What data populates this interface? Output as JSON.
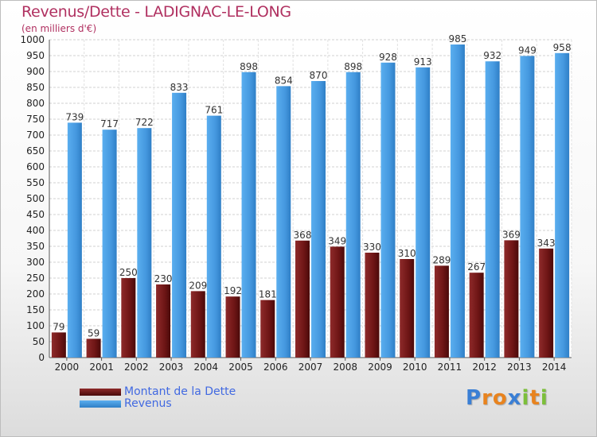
{
  "chart_data": {
    "type": "bar",
    "title": "Revenus/Dette - LADIGNAC-LE-LONG",
    "subtitle": "(en milliers d'€)",
    "categories": [
      "2000",
      "2001",
      "2002",
      "2003",
      "2004",
      "2005",
      "2006",
      "2007",
      "2008",
      "2009",
      "2010",
      "2011",
      "2012",
      "2013",
      "2014"
    ],
    "series": [
      {
        "name": "Montant de la Dette",
        "color": "#7a1a1a",
        "values": [
          79,
          59,
          250,
          230,
          209,
          192,
          181,
          368,
          349,
          330,
          310,
          289,
          267,
          369,
          343
        ]
      },
      {
        "name": "Revenus",
        "color": "#4a9fe6",
        "values": [
          739,
          717,
          722,
          833,
          761,
          898,
          854,
          870,
          898,
          928,
          913,
          985,
          932,
          949,
          958
        ]
      }
    ],
    "ylim": [
      0,
      1000
    ],
    "yticks": [
      0,
      50,
      100,
      150,
      200,
      250,
      300,
      350,
      400,
      450,
      500,
      550,
      600,
      650,
      700,
      750,
      800,
      850,
      900,
      950,
      1000
    ],
    "grid": true,
    "legend": "bottom-left"
  },
  "legend_items": [
    "Montant de la Dette",
    "Revenus"
  ],
  "logo": {
    "text": "Proxiti",
    "letters": [
      "P",
      "r",
      "o",
      "x",
      "i",
      "t",
      "i"
    ],
    "colors": [
      "#3a7fd5",
      "#e8831e",
      "#e8831e",
      "#3a7fd5",
      "#7cbf3a",
      "#e8831e",
      "#7cbf3a"
    ]
  }
}
